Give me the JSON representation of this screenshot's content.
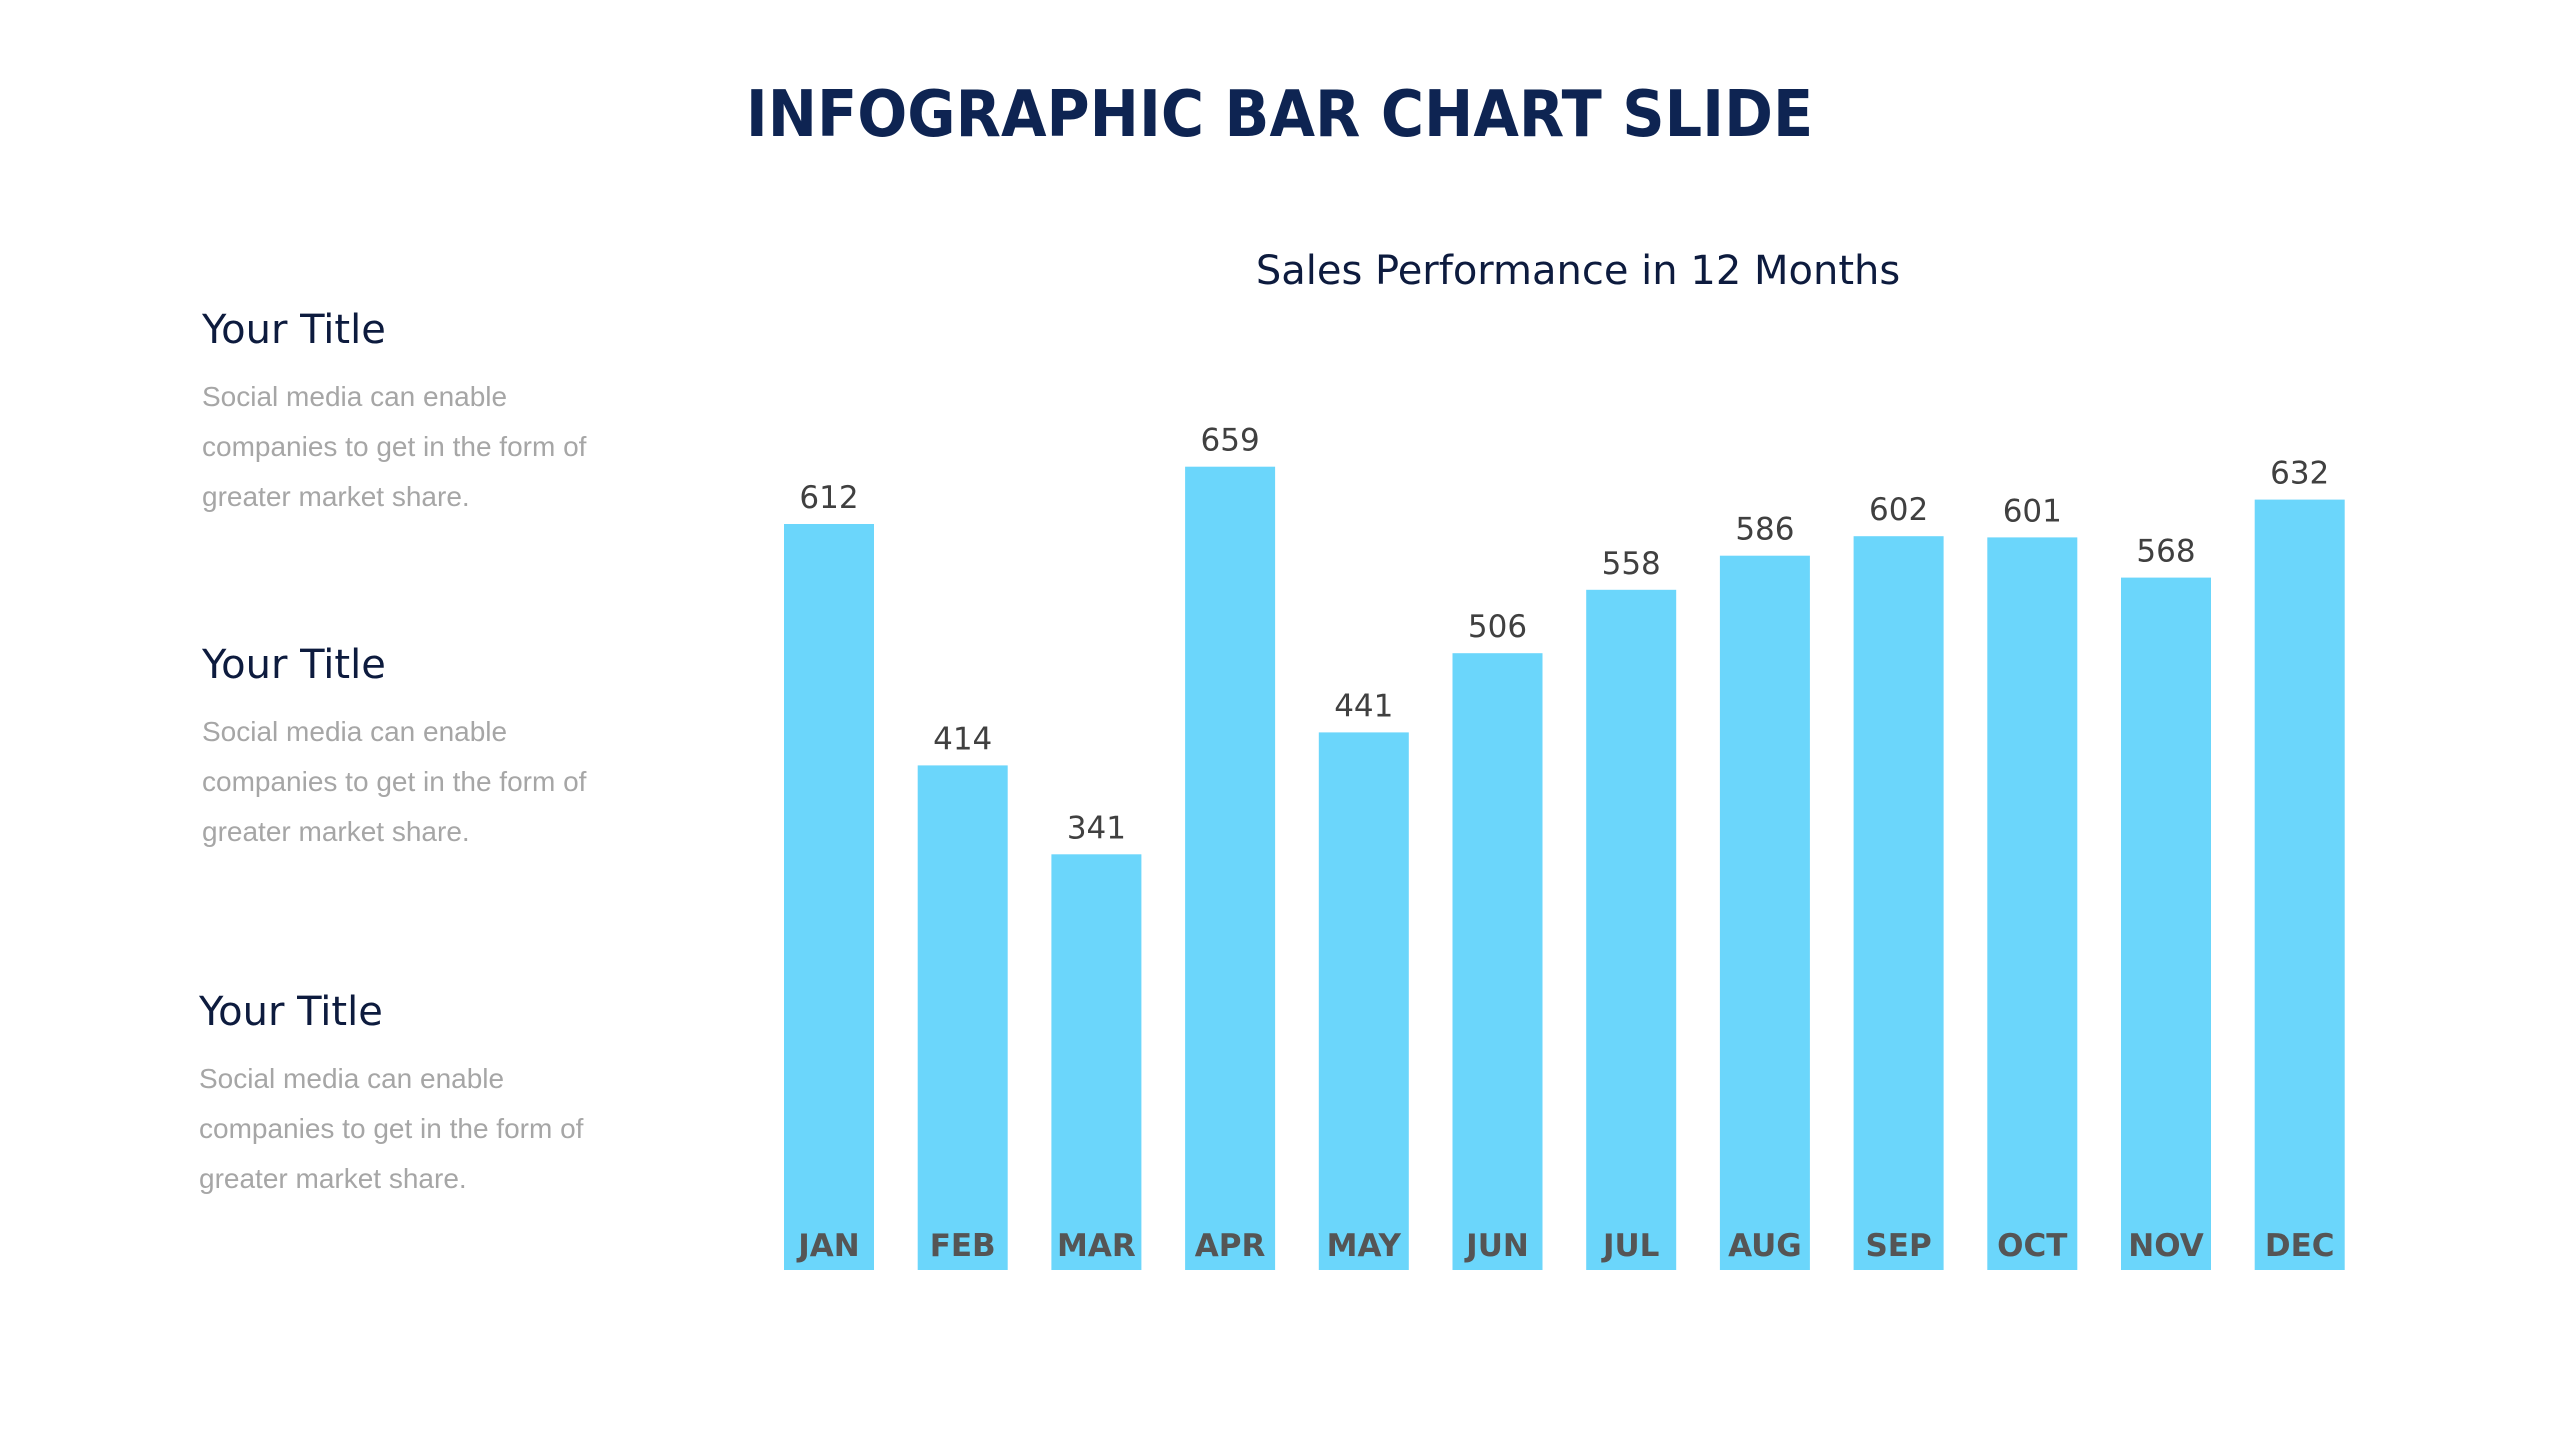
{
  "slide": {
    "title": "INFOGRAPHIC BAR CHART SLIDE"
  },
  "side_blocks": [
    {
      "title": "Your Title",
      "lines": [
        "Social media can enable",
        "companies to get in the form of",
        "greater market share."
      ]
    },
    {
      "title": "Your Title",
      "lines": [
        "Social media can enable",
        "companies to get in the form of",
        "greater market share."
      ]
    },
    {
      "title": "Your Title",
      "lines": [
        "Social media can enable",
        "companies to get in the form of",
        "greater market share."
      ]
    }
  ],
  "colors": {
    "bar": "#6bd6fb",
    "title": "#0e2452",
    "value_label": "#404040",
    "month_label": "#555555"
  },
  "chart_data": {
    "type": "bar",
    "title": "Sales Performance in 12 Months",
    "xlabel": "",
    "ylabel": "",
    "categories": [
      "JAN",
      "FEB",
      "MAR",
      "APR",
      "MAY",
      "JUN",
      "JUL",
      "AUG",
      "SEP",
      "OCT",
      "NOV",
      "DEC"
    ],
    "values": [
      612,
      414,
      341,
      659,
      441,
      506,
      558,
      586,
      602,
      601,
      568,
      632
    ],
    "ylim": [
      0,
      659
    ],
    "grid": false,
    "legend": "none",
    "data_labels": true
  }
}
